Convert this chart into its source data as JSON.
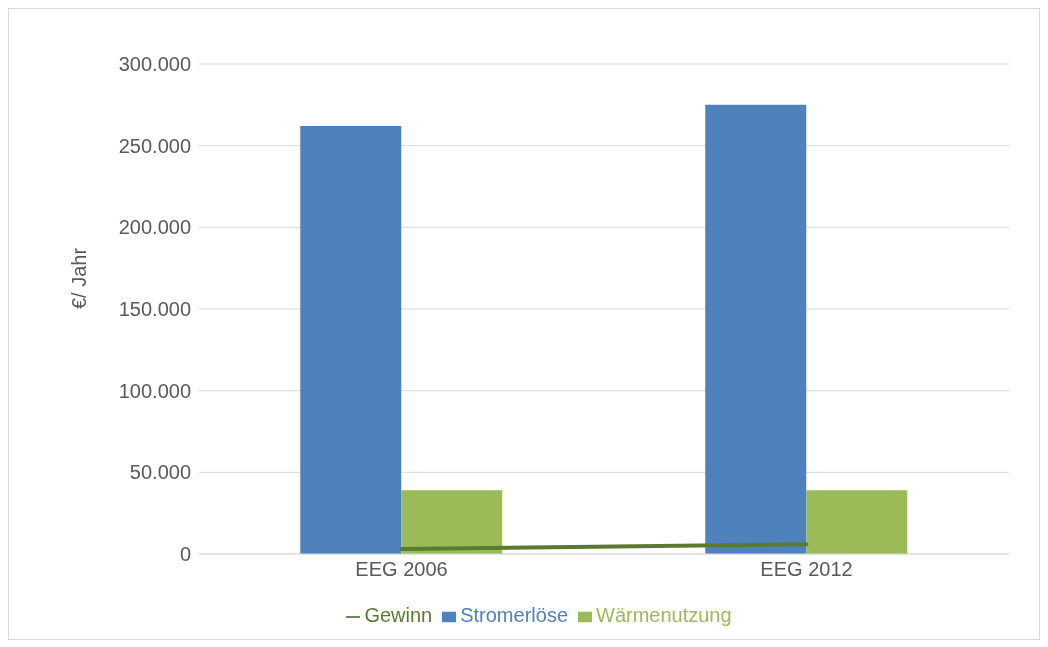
{
  "chart_data": {
    "type": "bar",
    "ylabel": "€/ Jahr",
    "categories": [
      "EEG 2006",
      "EEG 2012"
    ],
    "series": [
      {
        "name": "Stromerlöse",
        "color": "#4f81bd",
        "values": [
          262000,
          275000
        ]
      },
      {
        "name": "Wärmenutzung",
        "color": "#9bbb59",
        "values": [
          39000,
          39000
        ]
      },
      {
        "name": "Gewinn",
        "type": "line",
        "color": "#5a7a30",
        "values": [
          3000,
          6000
        ]
      }
    ],
    "ylim": [
      0,
      300000
    ],
    "yticks": [
      0,
      {
        "value": 50000,
        "label": "50.000"
      },
      {
        "value": 100000,
        "label": "100.000"
      },
      {
        "value": 150000,
        "label": "150.000"
      },
      {
        "value": 200000,
        "label": "200.000"
      },
      {
        "value": 250000,
        "label": "250.000"
      },
      {
        "value": 300000,
        "label": "300.000"
      }
    ],
    "grid": "y",
    "legend": "bottom",
    "marker": "none"
  }
}
